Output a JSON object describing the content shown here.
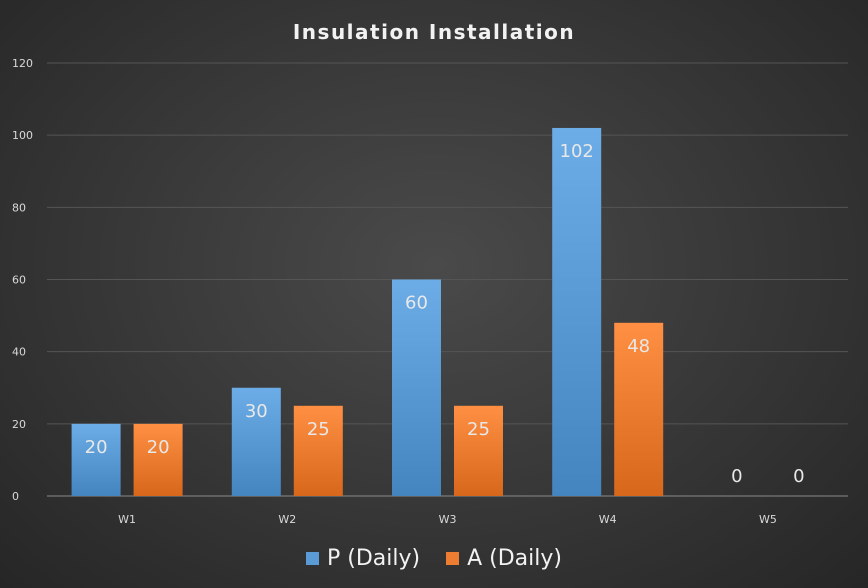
{
  "chart_data": {
    "type": "bar",
    "title": "Insulation Installation",
    "categories": [
      "W1",
      "W2",
      "W3",
      "W4",
      "W5"
    ],
    "series": [
      {
        "name": "P (Daily)",
        "values": [
          20,
          30,
          60,
          102,
          0
        ],
        "color": "#5b9bd5"
      },
      {
        "name": "A (Daily)",
        "values": [
          20,
          25,
          25,
          48,
          0
        ],
        "color": "#ed7d31"
      }
    ],
    "ylim": [
      0,
      120
    ],
    "yticks": [
      0,
      20,
      40,
      60,
      80,
      100,
      120
    ],
    "grid": true,
    "legend": "bottom",
    "data_labels": true
  }
}
